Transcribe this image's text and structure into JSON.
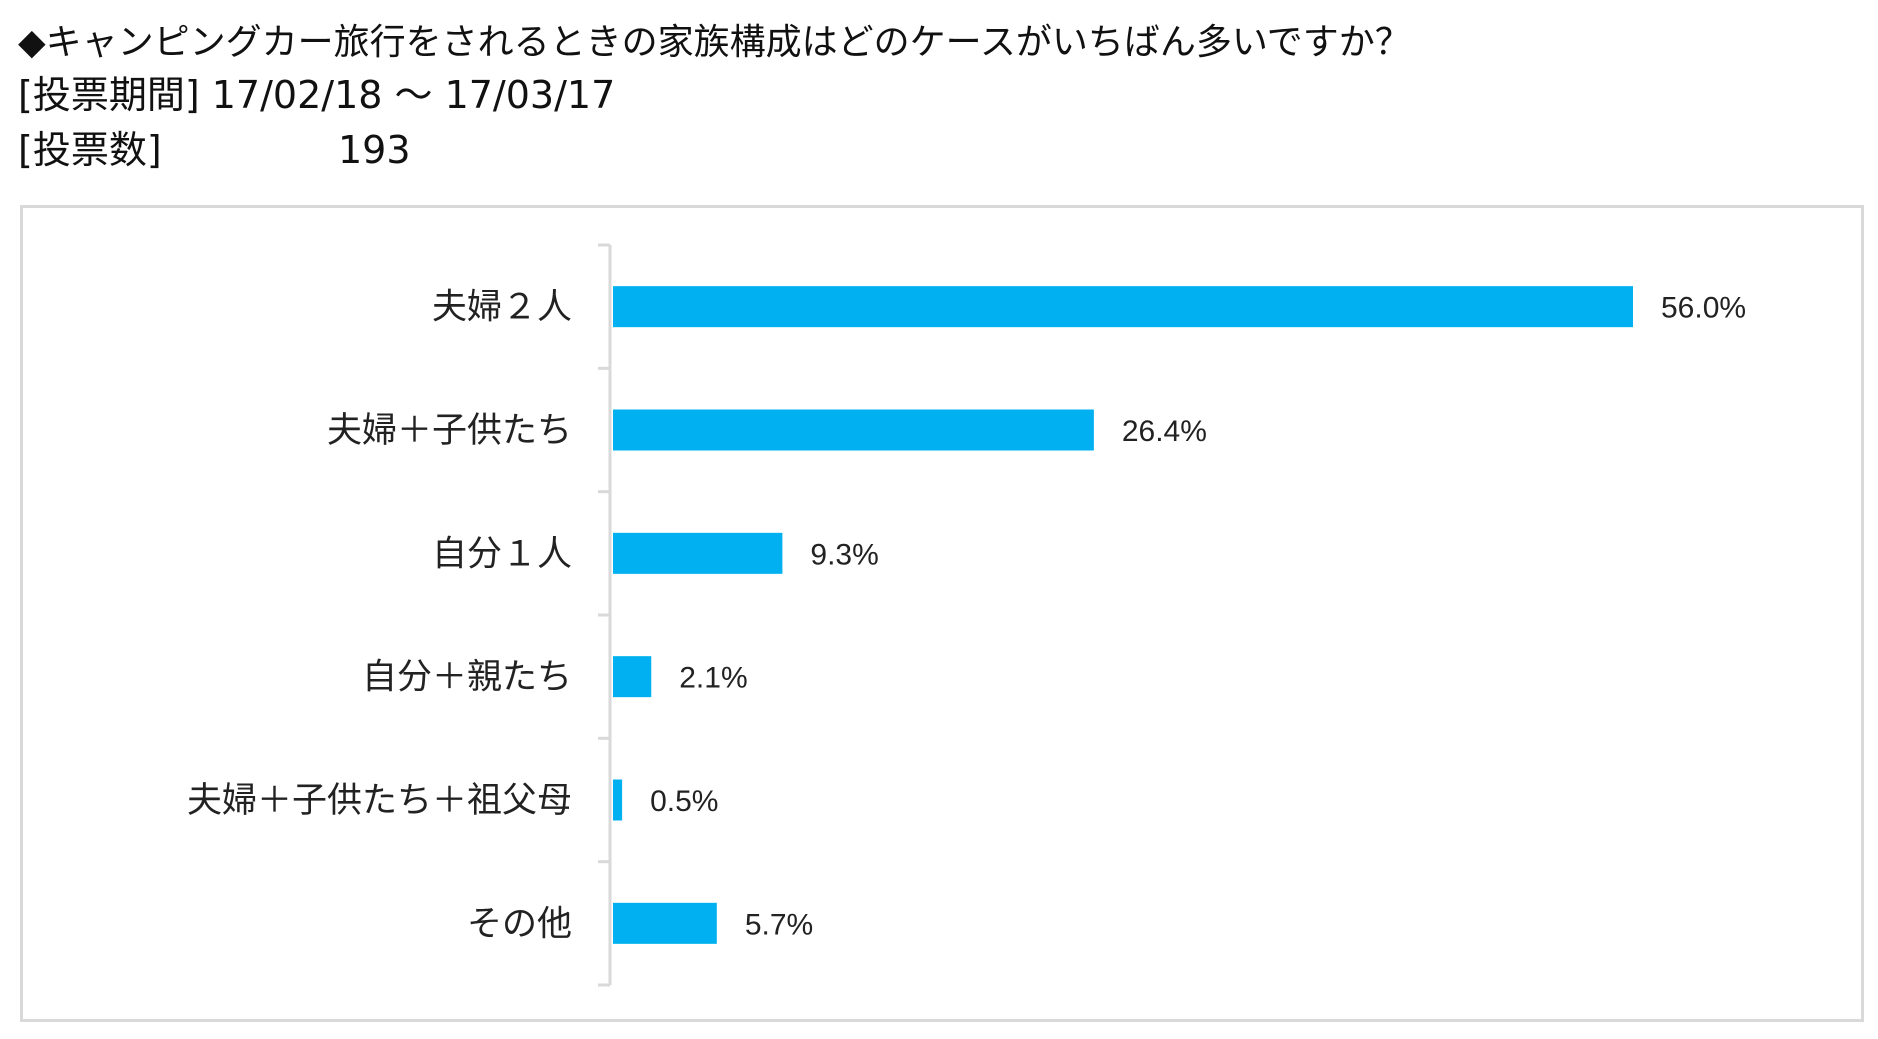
{
  "header": {
    "question": "◆キャンピングカー旅行をされるときの家族構成はどのケースがいちばん多いですか？",
    "period_label": "[投票期間]",
    "period_value": "17/02/18 ～ 17/03/17",
    "votes_label": "[投票数]",
    "votes_value": "193"
  },
  "colors": {
    "bar": "#00b0f0",
    "axis": "#d9d9d9",
    "frame": "#d9d9d9"
  },
  "chart_data": {
    "type": "bar",
    "orientation": "horizontal",
    "categories": [
      "夫婦２人",
      "夫婦＋子供たち",
      "自分１人",
      "自分＋親たち",
      "夫婦＋子供たち＋祖父母",
      "その他"
    ],
    "values": [
      56.0,
      26.4,
      9.3,
      2.1,
      0.5,
      5.7
    ],
    "value_labels": [
      "56.0%",
      "26.4%",
      "9.3%",
      "2.1%",
      "0.5%",
      "5.7%"
    ],
    "unit": "%",
    "xlim": [
      0,
      56.0
    ],
    "grid": false,
    "legend": "none"
  }
}
